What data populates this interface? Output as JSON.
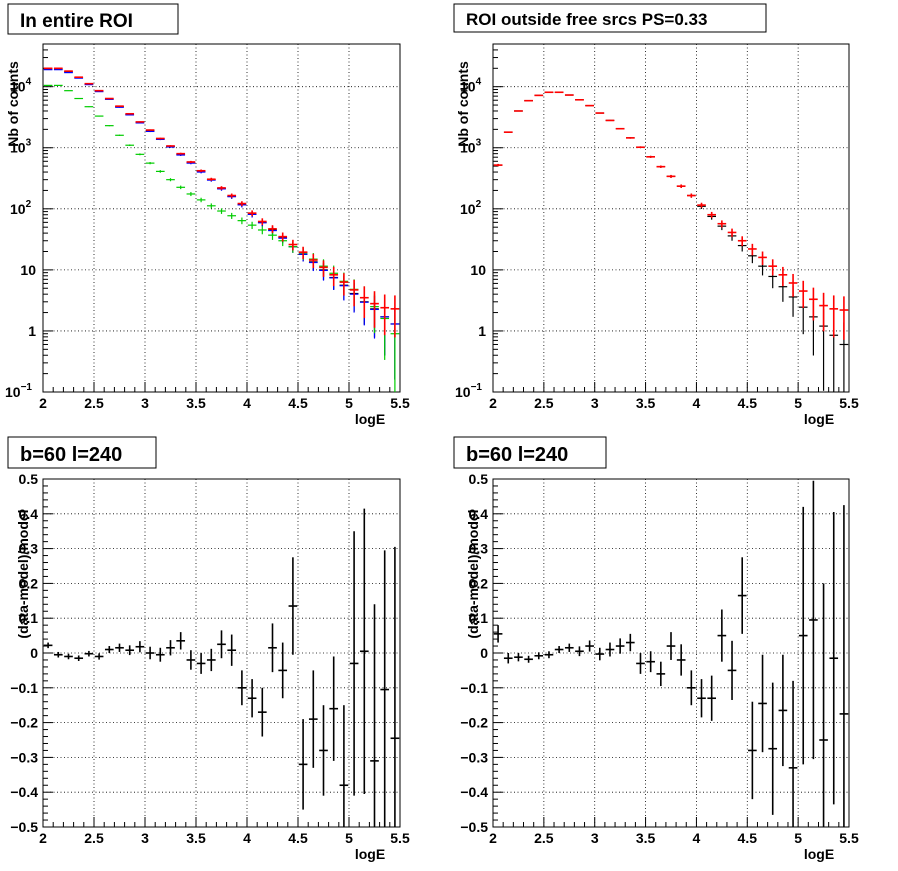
{
  "chart_data": [
    {
      "type": "scatter",
      "title": "In entire ROI",
      "xlabel": "logE",
      "ylabel": "Nb of counts",
      "xlim": [
        2,
        5.5
      ],
      "ylim": [
        0.1,
        50000
      ],
      "yscale": "log",
      "grid": true,
      "x_ticks": [
        "2",
        "2.5",
        "3",
        "3.5",
        "4",
        "4.5",
        "5",
        "5.5"
      ],
      "y_ticks": [
        {
          "value": 0.1,
          "base": "10",
          "exp": "−1"
        },
        {
          "value": 1,
          "label": "1"
        },
        {
          "value": 10,
          "label": "10"
        },
        {
          "value": 100,
          "base": "10",
          "exp": "2"
        },
        {
          "value": 1000,
          "base": "10",
          "exp": "3"
        },
        {
          "value": 10000,
          "base": "10",
          "exp": "4"
        }
      ],
      "x": [
        2.05,
        2.15,
        2.25,
        2.35,
        2.45,
        2.55,
        2.65,
        2.75,
        2.85,
        2.95,
        3.05,
        3.15,
        3.25,
        3.35,
        3.45,
        3.55,
        3.65,
        3.75,
        3.85,
        3.95,
        4.05,
        4.15,
        4.25,
        4.35,
        4.45,
        4.55,
        4.65,
        4.75,
        4.85,
        4.95,
        5.05,
        5.15,
        5.25,
        5.35,
        5.45
      ],
      "series": [
        {
          "color": "#000000",
          "values": [
            19500,
            19500,
            17500,
            14000,
            11000,
            8400,
            6300,
            4700,
            3500,
            2600,
            1900,
            1400,
            1050,
            780,
            570,
            410,
            300,
            215,
            160,
            118,
            82,
            60,
            45,
            34,
            24,
            18,
            13.5,
            10,
            7.5,
            5.6,
            4.1,
            3.0,
            2.3,
            1.7,
            1.3
          ]
        },
        {
          "color": "#0000ff",
          "values": [
            19000,
            19000,
            17000,
            13800,
            10800,
            8300,
            6200,
            4600,
            3450,
            2550,
            1850,
            1370,
            1030,
            760,
            560,
            400,
            295,
            212,
            158,
            116,
            81,
            59,
            44,
            33,
            24,
            18,
            13.2,
            9.8,
            7.4,
            5.5,
            4.0,
            2.95,
            2.25,
            1.7,
            1.3
          ]
        },
        {
          "color": "#00cc00",
          "values": [
            10500,
            10500,
            8600,
            6400,
            4700,
            3300,
            2300,
            1600,
            1100,
            780,
            560,
            410,
            300,
            225,
            175,
            140,
            112,
            92,
            77,
            64,
            54,
            45,
            37,
            30,
            24,
            19,
            15,
            11.5,
            8.8,
            6.5,
            4.8,
            3.5,
            2.5,
            1.6,
            0.9
          ]
        },
        {
          "color": "#ff0000",
          "values": [
            20000,
            20000,
            18000,
            14300,
            11200,
            8600,
            6400,
            4800,
            3600,
            2650,
            1950,
            1420,
            1070,
            800,
            585,
            420,
            305,
            220,
            165,
            122,
            85,
            62,
            47,
            35,
            26,
            19.5,
            14.5,
            11,
            8.3,
            6.3,
            4.7,
            3.5,
            2.8,
            2.4,
            2.3
          ]
        }
      ]
    },
    {
      "type": "scatter",
      "title": "ROI outside free srcs PS=0.33",
      "xlabel": "logE",
      "ylabel": "Nb of counts",
      "xlim": [
        2,
        5.5
      ],
      "ylim": [
        0.1,
        50000
      ],
      "yscale": "log",
      "grid": true,
      "x_ticks": [
        "2",
        "2.5",
        "3",
        "3.5",
        "4",
        "4.5",
        "5",
        "5.5"
      ],
      "y_ticks": [
        {
          "value": 0.1,
          "base": "10",
          "exp": "−1"
        },
        {
          "value": 1,
          "label": "1"
        },
        {
          "value": 10,
          "label": "10"
        },
        {
          "value": 100,
          "base": "10",
          "exp": "2"
        },
        {
          "value": 1000,
          "base": "10",
          "exp": "3"
        },
        {
          "value": 10000,
          "base": "10",
          "exp": "4"
        }
      ],
      "x": [
        2.05,
        2.15,
        2.25,
        2.35,
        2.45,
        2.55,
        2.65,
        2.75,
        2.85,
        2.95,
        3.05,
        3.15,
        3.25,
        3.35,
        3.45,
        3.55,
        3.65,
        3.75,
        3.85,
        3.95,
        4.05,
        4.15,
        4.25,
        4.35,
        4.45,
        4.55,
        4.65,
        4.75,
        4.85,
        4.95,
        5.05,
        5.15,
        5.25,
        5.35,
        5.45
      ],
      "series": [
        {
          "color": "#000000",
          "values": [
            520,
            1800,
            4000,
            5900,
            7200,
            8100,
            8100,
            7300,
            6100,
            4900,
            3700,
            2800,
            2050,
            1450,
            1020,
            710,
            490,
            340,
            235,
            165,
            110,
            75,
            52,
            36,
            25,
            17,
            11.5,
            7.8,
            5.3,
            3.6,
            2.45,
            1.7,
            1.2,
            0.85,
            0.6
          ]
        },
        {
          "color": "#ff0000",
          "values": [
            520,
            1800,
            4000,
            5900,
            7200,
            8100,
            8100,
            7300,
            6100,
            4900,
            3700,
            2800,
            2050,
            1450,
            1020,
            710,
            490,
            340,
            235,
            165,
            115,
            80,
            57,
            41,
            30,
            22,
            16,
            11.5,
            8.3,
            6.1,
            4.5,
            3.3,
            2.6,
            2.3,
            2.2
          ]
        }
      ]
    },
    {
      "type": "scatter",
      "title": "b=60 l=240",
      "xlabel": "logE",
      "ylabel": "(data-model)/model",
      "xlim": [
        2,
        5.5
      ],
      "ylim": [
        -0.5,
        0.5
      ],
      "grid": true,
      "x_ticks": [
        "2",
        "2.5",
        "3",
        "3.5",
        "4",
        "4.5",
        "5",
        "5.5"
      ],
      "y_ticks": [
        "−0.5",
        "−0.4",
        "−0.3",
        "−0.2",
        "−0.1",
        "0",
        "0.1",
        "0.2",
        "0.3",
        "0.4",
        "0.5"
      ],
      "x": [
        2.05,
        2.15,
        2.25,
        2.35,
        2.45,
        2.55,
        2.65,
        2.75,
        2.85,
        2.95,
        3.05,
        3.15,
        3.25,
        3.35,
        3.45,
        3.55,
        3.65,
        3.75,
        3.85,
        3.95,
        4.05,
        4.15,
        4.25,
        4.35,
        4.45,
        4.55,
        4.65,
        4.75,
        4.85,
        4.95,
        5.05,
        5.15,
        5.25,
        5.35,
        5.45
      ],
      "series": [
        {
          "color": "#000000",
          "values": [
            0.022,
            -0.005,
            -0.01,
            -0.015,
            -0.002,
            -0.01,
            0.01,
            0.015,
            0.008,
            0.018,
            0.0,
            -0.005,
            0.015,
            0.035,
            -0.02,
            -0.03,
            -0.02,
            0.025,
            0.008,
            -0.1,
            -0.13,
            -0.17,
            0.015,
            -0.05,
            0.135,
            -0.32,
            -0.19,
            -0.28,
            -0.16,
            -0.38,
            -0.03,
            0.005,
            -0.31,
            -0.105,
            -0.245
          ],
          "errors": [
            0.008,
            0.008,
            0.008,
            0.008,
            0.008,
            0.009,
            0.01,
            0.012,
            0.014,
            0.016,
            0.018,
            0.02,
            0.022,
            0.025,
            0.028,
            0.03,
            0.032,
            0.04,
            0.045,
            0.05,
            0.055,
            0.07,
            0.07,
            0.08,
            0.14,
            0.13,
            0.14,
            0.13,
            0.15,
            0.23,
            0.38,
            0.41,
            0.45,
            0.4,
            0.55
          ]
        }
      ]
    },
    {
      "type": "scatter",
      "title": "b=60 l=240",
      "xlabel": "logE",
      "ylabel": "(data-model)/model",
      "xlim": [
        2,
        5.5
      ],
      "ylim": [
        -0.5,
        0.5
      ],
      "grid": true,
      "x_ticks": [
        "2",
        "2.5",
        "3",
        "3.5",
        "4",
        "4.5",
        "5",
        "5.5"
      ],
      "y_ticks": [
        "−0.5",
        "−0.4",
        "−0.3",
        "−0.2",
        "−0.1",
        "0",
        "0.1",
        "0.2",
        "0.3",
        "0.4",
        "0.5"
      ],
      "x": [
        2.05,
        2.15,
        2.25,
        2.35,
        2.45,
        2.55,
        2.65,
        2.75,
        2.85,
        2.95,
        3.05,
        3.15,
        3.25,
        3.35,
        3.45,
        3.55,
        3.65,
        3.75,
        3.85,
        3.95,
        4.05,
        4.15,
        4.25,
        4.35,
        4.45,
        4.55,
        4.65,
        4.75,
        4.85,
        4.95,
        5.05,
        5.15,
        5.25,
        5.35,
        5.45
      ],
      "series": [
        {
          "color": "#000000",
          "values": [
            0.055,
            -0.015,
            -0.012,
            -0.018,
            -0.008,
            -0.005,
            0.01,
            0.015,
            0.005,
            0.02,
            -0.003,
            0.01,
            0.02,
            0.03,
            -0.03,
            -0.025,
            -0.06,
            0.02,
            -0.02,
            -0.1,
            -0.13,
            -0.13,
            0.05,
            -0.05,
            0.165,
            -0.28,
            -0.145,
            -0.275,
            -0.165,
            -0.33,
            0.05,
            0.095,
            -0.25,
            -0.015,
            -0.175
          ],
          "errors": [
            0.025,
            0.015,
            0.012,
            0.01,
            0.01,
            0.01,
            0.01,
            0.012,
            0.014,
            0.016,
            0.018,
            0.02,
            0.022,
            0.025,
            0.03,
            0.03,
            0.035,
            0.04,
            0.045,
            0.05,
            0.055,
            0.065,
            0.075,
            0.085,
            0.11,
            0.14,
            0.14,
            0.19,
            0.16,
            0.25,
            0.37,
            0.4,
            0.45,
            0.42,
            0.6
          ]
        }
      ]
    }
  ]
}
